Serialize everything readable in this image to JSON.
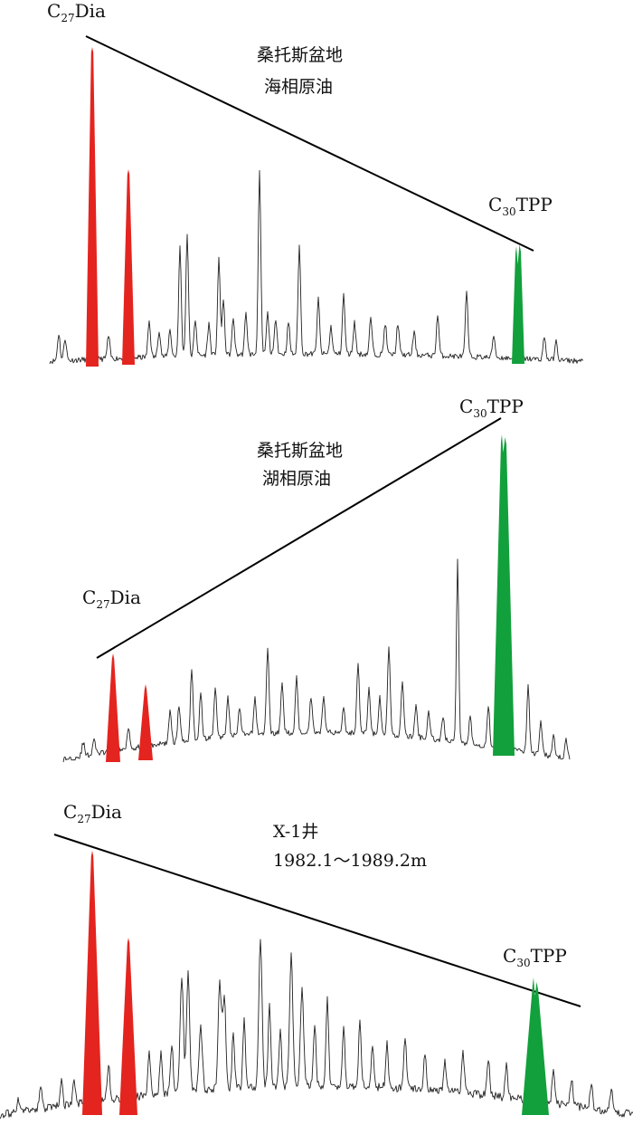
{
  "colors": {
    "dia_peak": "#e4241f",
    "tpp_peak": "#12a03c",
    "trace": "#222222",
    "trend_line": "#000000"
  },
  "chart_data": [
    {
      "type": "line",
      "title": [
        "桑托斯盆地",
        "海相原油"
      ],
      "peak_labels": {
        "dia": {
          "base": "C",
          "sub": "27",
          "suffix": "Dia"
        },
        "tpp": {
          "base": "C",
          "sub": "30",
          "suffix": "TPP"
        }
      },
      "relative_peak_height": {
        "dia": 1.0,
        "tpp": 0.38
      },
      "trend": "decreasing"
    },
    {
      "type": "line",
      "title": [
        "桑托斯盆地",
        "湖相原油"
      ],
      "peak_labels": {
        "dia": {
          "base": "C",
          "sub": "27",
          "suffix": "Dia"
        },
        "tpp": {
          "base": "C",
          "sub": "30",
          "suffix": "TPP"
        }
      },
      "relative_peak_height": {
        "dia": 0.36,
        "tpp": 1.0
      },
      "trend": "increasing"
    },
    {
      "type": "line",
      "title": [
        "X-1井",
        "1982.1～1989.2m"
      ],
      "peak_labels": {
        "dia": {
          "base": "C",
          "sub": "27",
          "suffix": "Dia"
        },
        "tpp": {
          "base": "C",
          "sub": "30",
          "suffix": "TPP"
        }
      },
      "relative_peak_height": {
        "dia": 1.0,
        "tpp": 0.5
      },
      "trend": "decreasing"
    }
  ]
}
